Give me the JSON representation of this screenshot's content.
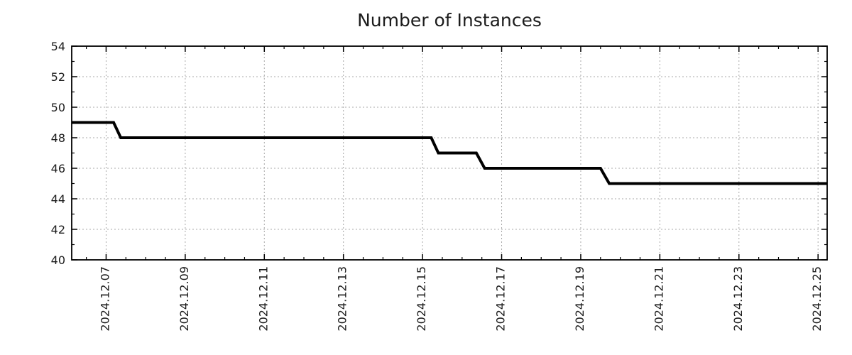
{
  "chart_data": {
    "type": "line",
    "line_style": "step",
    "title": "Number of Instances",
    "xlabel": "",
    "ylabel": "",
    "x_unit": "date (day of 2024-12)",
    "x_range": [
      6.13,
      25.23
    ],
    "y_range": [
      40,
      54
    ],
    "x_ticks": [
      {
        "v": 7,
        "label": "2024.12.07"
      },
      {
        "v": 9,
        "label": "2024.12.09"
      },
      {
        "v": 11,
        "label": "2024.12.11"
      },
      {
        "v": 13,
        "label": "2024.12.13"
      },
      {
        "v": 15,
        "label": "2024.12.15"
      },
      {
        "v": 17,
        "label": "2024.12.17"
      },
      {
        "v": 19,
        "label": "2024.12.19"
      },
      {
        "v": 21,
        "label": "2024.12.21"
      },
      {
        "v": 23,
        "label": "2024.12.23"
      },
      {
        "v": 25,
        "label": "2024.12.25"
      }
    ],
    "y_ticks": [
      {
        "v": 40,
        "label": "40"
      },
      {
        "v": 42,
        "label": "42"
      },
      {
        "v": 44,
        "label": "44"
      },
      {
        "v": 46,
        "label": "46"
      },
      {
        "v": 48,
        "label": "48"
      },
      {
        "v": 50,
        "label": "50"
      },
      {
        "v": 52,
        "label": "52"
      },
      {
        "v": 54,
        "label": "54"
      }
    ],
    "x_minor_step": 0.5,
    "y_minor_step": 1,
    "grid": true,
    "legend": false,
    "line_color": "#000000",
    "line_width": 4,
    "grid_color": "#a8a8a8",
    "frame_color": "#000000",
    "text_color": "#1c1c1c",
    "series": [
      {
        "name": "Number of Instances",
        "points": [
          [
            6.13,
            49
          ],
          [
            7.19,
            49
          ],
          [
            7.37,
            48
          ],
          [
            15.22,
            48
          ],
          [
            15.4,
            47
          ],
          [
            16.36,
            47
          ],
          [
            16.57,
            46
          ],
          [
            19.5,
            46
          ],
          [
            19.72,
            45
          ],
          [
            25.23,
            45
          ]
        ]
      }
    ]
  }
}
